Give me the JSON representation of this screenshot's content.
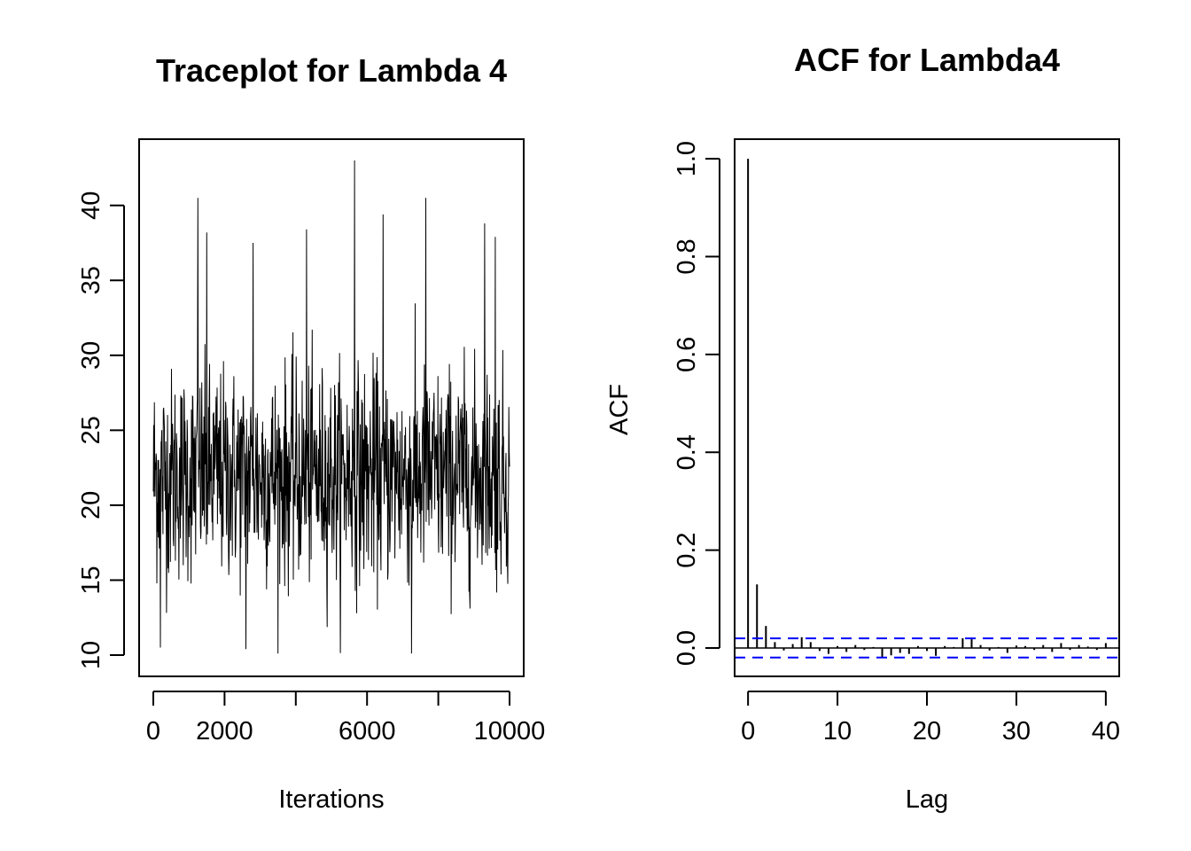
{
  "chart_data": [
    {
      "type": "line",
      "title": "Traceplot for Lambda 4",
      "xlabel": "Iterations",
      "ylabel": "",
      "xlim": [
        0,
        10000
      ],
      "ylim": [
        10,
        43
      ],
      "x_ticks": [
        0,
        2000,
        4000,
        6000,
        8000,
        10000
      ],
      "x_tick_labels": [
        "0",
        "2000",
        "",
        "6000",
        "",
        "10000"
      ],
      "y_ticks": [
        10,
        15,
        20,
        25,
        30,
        35,
        40
      ],
      "y_tick_labels": [
        "10",
        "15",
        "20",
        "25",
        "30",
        "35",
        "40"
      ],
      "grid": false,
      "series_summary": {
        "n_iterations": 10000,
        "center": 22,
        "typical_low": 15.5,
        "typical_high": 29.5,
        "min": 10.1,
        "max": 43.0
      },
      "extreme_points": [
        {
          "x": 200,
          "y": 10.5
        },
        {
          "x": 1250,
          "y": 40.5
        },
        {
          "x": 1500,
          "y": 38.2
        },
        {
          "x": 2600,
          "y": 10.4
        },
        {
          "x": 2800,
          "y": 37.5
        },
        {
          "x": 4300,
          "y": 38.4
        },
        {
          "x": 5650,
          "y": 43.0
        },
        {
          "x": 6450,
          "y": 39.4
        },
        {
          "x": 7250,
          "y": 10.1
        },
        {
          "x": 7650,
          "y": 40.5
        },
        {
          "x": 9300,
          "y": 38.8
        },
        {
          "x": 9600,
          "y": 37.9
        }
      ],
      "line_color": "#000000"
    },
    {
      "type": "bar",
      "title": "ACF for Lambda4",
      "xlabel": "Lag",
      "ylabel": "ACF",
      "xlim": [
        -1.5,
        41.5
      ],
      "ylim": [
        -0.058,
        1.04
      ],
      "x_ticks": [
        0,
        10,
        20,
        30,
        40
      ],
      "x_tick_labels": [
        "0",
        "10",
        "20",
        "30",
        "40"
      ],
      "y_ticks": [
        0.0,
        0.2,
        0.4,
        0.6,
        0.8,
        1.0
      ],
      "y_tick_labels": [
        "0.0",
        "0.2",
        "0.4",
        "0.6",
        "0.8",
        "1.0"
      ],
      "grid": false,
      "lags": [
        0,
        1,
        2,
        3,
        4,
        5,
        6,
        7,
        8,
        9,
        10,
        11,
        12,
        13,
        14,
        15,
        16,
        17,
        18,
        19,
        20,
        21,
        22,
        23,
        24,
        25,
        26,
        27,
        28,
        29,
        30,
        31,
        32,
        33,
        34,
        35,
        36,
        37,
        38,
        39,
        40
      ],
      "acf": [
        1.0,
        0.13,
        0.045,
        0.012,
        -0.005,
        0.008,
        0.022,
        0.012,
        -0.006,
        -0.012,
        0.004,
        -0.008,
        0.006,
        -0.004,
        0.002,
        -0.02,
        -0.015,
        -0.01,
        -0.012,
        0.004,
        -0.006,
        -0.016,
        0.004,
        0.002,
        0.02,
        0.018,
        0.006,
        -0.005,
        0.002,
        -0.01,
        0.005,
        0.004,
        -0.004,
        0.006,
        -0.008,
        0.01,
        -0.004,
        0.006,
        0.003,
        -0.004,
        0.01
      ],
      "confidence_bound": 0.0196,
      "bar_color": "#000000",
      "confidence_color": "#0000ff"
    }
  ]
}
